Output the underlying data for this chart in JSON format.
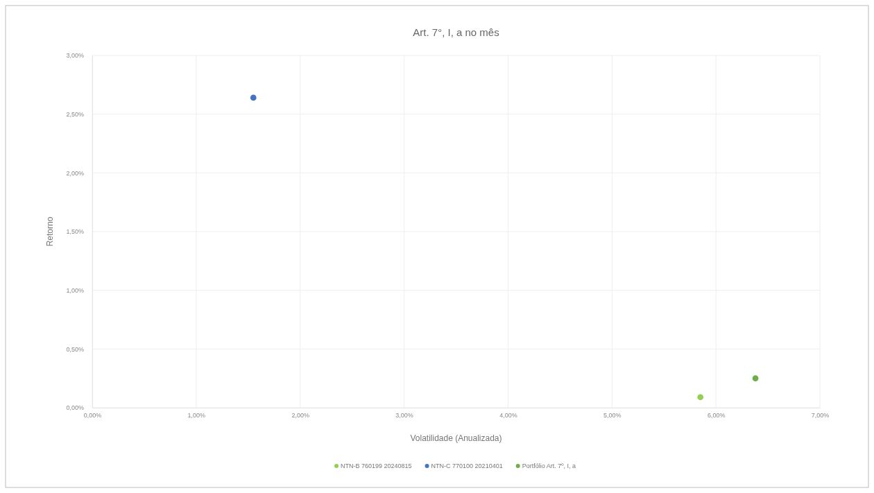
{
  "chart_data": {
    "type": "scatter",
    "title": "Art. 7°, I,  a no mês",
    "xlabel": "Volatilidade (Anualizada)",
    "ylabel": "Retorno",
    "series": [
      {
        "name": "NTN-B 760199 20240815",
        "color": "#92d050",
        "x": [
          5.85
        ],
        "values": [
          0.09
        ]
      },
      {
        "name": "NTN-C 770100 20210401",
        "color": "#4472c4",
        "x": [
          1.55
        ],
        "values": [
          2.64
        ]
      },
      {
        "name": "Portfólio Art. 7º, I, a",
        "color": "#70ad47",
        "x": [
          6.38
        ],
        "values": [
          0.25
        ]
      }
    ],
    "xlim": [
      0,
      7
    ],
    "xticks": [
      {
        "value": 0,
        "label": "0,00%"
      },
      {
        "value": 1,
        "label": "1,00%"
      },
      {
        "value": 2,
        "label": "2,00%"
      },
      {
        "value": 3,
        "label": "3,00%"
      },
      {
        "value": 4,
        "label": "4,00%"
      },
      {
        "value": 5,
        "label": "5,00%"
      },
      {
        "value": 6,
        "label": "6,00%"
      },
      {
        "value": 7,
        "label": "7,00%"
      }
    ],
    "ylim": [
      0,
      3
    ],
    "yticks": [
      {
        "value": 0,
        "label": "0,00%"
      },
      {
        "value": 0.5,
        "label": "0,50%"
      },
      {
        "value": 1,
        "label": "1,00%"
      },
      {
        "value": 1.5,
        "label": "1,50%"
      },
      {
        "value": 2,
        "label": "2,00%"
      },
      {
        "value": 2.5,
        "label": "2,50%"
      },
      {
        "value": 3,
        "label": "3,00%"
      }
    ],
    "grid": true,
    "legend": "bottom",
    "marker": "circle"
  }
}
